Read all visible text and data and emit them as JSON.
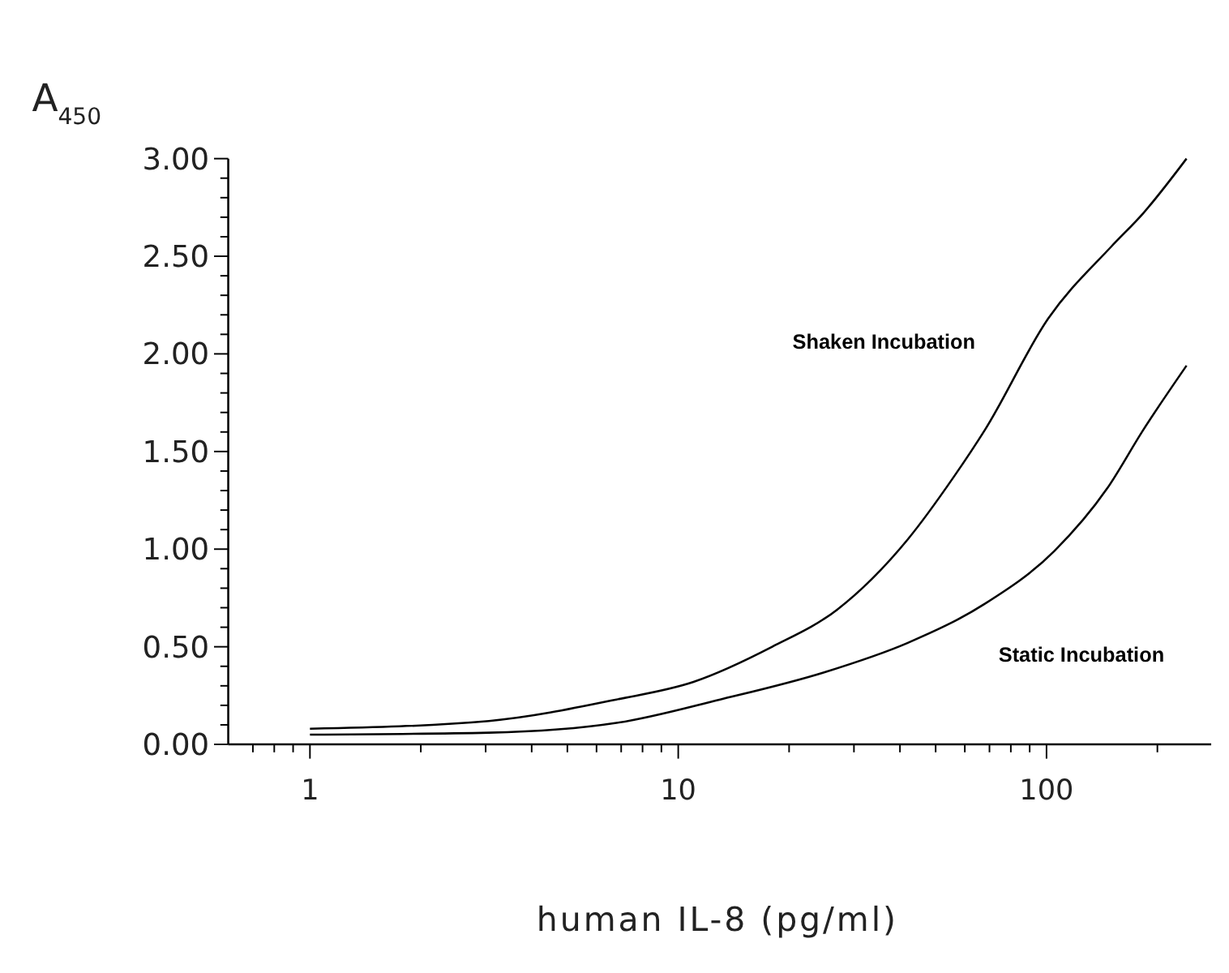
{
  "chart_data": {
    "type": "line",
    "ylabel": "A$_{450}$",
    "xlabel": "human IL-8 (pg/ml)",
    "log": "x",
    "xlim": [
      0.6,
      280
    ],
    "ylim": [
      0,
      3
    ],
    "xticks": [
      {
        "value": 0.7,
        "label": null
      },
      {
        "value": 0.8,
        "label": null
      },
      {
        "value": 0.9,
        "label": null
      },
      1,
      {
        "value": 2,
        "label": null
      },
      {
        "value": 3,
        "label": null
      },
      {
        "value": 4,
        "label": null
      },
      {
        "value": 5,
        "label": null
      },
      {
        "value": 6,
        "label": null
      },
      {
        "value": 7,
        "label": null
      },
      {
        "value": 8,
        "label": null
      },
      {
        "value": 9,
        "label": null
      },
      10,
      {
        "value": 20,
        "label": null
      },
      {
        "value": 30,
        "label": null
      },
      {
        "value": 40,
        "label": null
      },
      {
        "value": 50,
        "label": null
      },
      {
        "value": 60,
        "label": null
      },
      {
        "value": 70,
        "label": null
      },
      {
        "value": 80,
        "label": null
      },
      {
        "value": 90,
        "label": null
      },
      100,
      {
        "value": 200,
        "label": null
      }
    ],
    "yticks": [
      {
        "value": 0,
        "label": "0.00"
      },
      {
        "value": 0.1,
        "label": null
      },
      {
        "value": 0.2,
        "label": null
      },
      {
        "value": 0.3,
        "label": null
      },
      {
        "value": 0.4,
        "label": null
      },
      {
        "value": 0.5,
        "label": "0.50"
      },
      {
        "value": 0.6,
        "label": null
      },
      {
        "value": 0.7,
        "label": null
      },
      {
        "value": 0.8,
        "label": null
      },
      {
        "value": 0.9,
        "label": null
      },
      {
        "value": 1,
        "label": "1.00"
      },
      {
        "value": 1.1,
        "label": null
      },
      {
        "value": 1.2,
        "label": null
      },
      {
        "value": 1.3,
        "label": null
      },
      {
        "value": 1.4,
        "label": null
      },
      {
        "value": 1.5,
        "label": "1.50"
      },
      {
        "value": 1.6,
        "label": null
      },
      {
        "value": 1.7,
        "label": null
      },
      {
        "value": 1.8,
        "label": null
      },
      {
        "value": 1.9,
        "label": null
      },
      {
        "value": 2,
        "label": "2.00"
      },
      {
        "value": 2.1,
        "label": null
      },
      {
        "value": 2.2,
        "label": null
      },
      {
        "value": 2.3,
        "label": null
      },
      {
        "value": 2.4,
        "label": null
      },
      {
        "value": 2.5,
        "label": "2.50"
      },
      {
        "value": 2.6,
        "label": null
      },
      {
        "value": 2.7,
        "label": null
      },
      {
        "value": 2.8,
        "label": null
      },
      {
        "value": 2.9,
        "label": null
      },
      {
        "value": 3,
        "label": "3.00"
      }
    ],
    "grid": false,
    "legend": false,
    "marker": "none",
    "line_style": "solid",
    "series": [
      {
        "name": "Shaken Incubation",
        "color": "#000000",
        "x": [
          1,
          3.06,
          6.8,
          11,
          18,
          27,
          42,
          56,
          68,
          101,
          150,
          183,
          240
        ],
        "values": [
          0.08,
          0.12,
          0.23,
          0.32,
          0.5,
          0.69,
          1.05,
          1.37,
          1.61,
          2.18,
          2.55,
          2.72,
          3.0
        ]
      },
      {
        "name": "Static Incubation",
        "color": "#000000",
        "x": [
          1,
          3.06,
          6.8,
          13,
          25,
          42,
          68,
          105,
          146,
          183,
          240
        ],
        "values": [
          0.05,
          0.06,
          0.11,
          0.23,
          0.37,
          0.52,
          0.72,
          0.99,
          1.31,
          1.61,
          1.94
        ]
      }
    ]
  }
}
